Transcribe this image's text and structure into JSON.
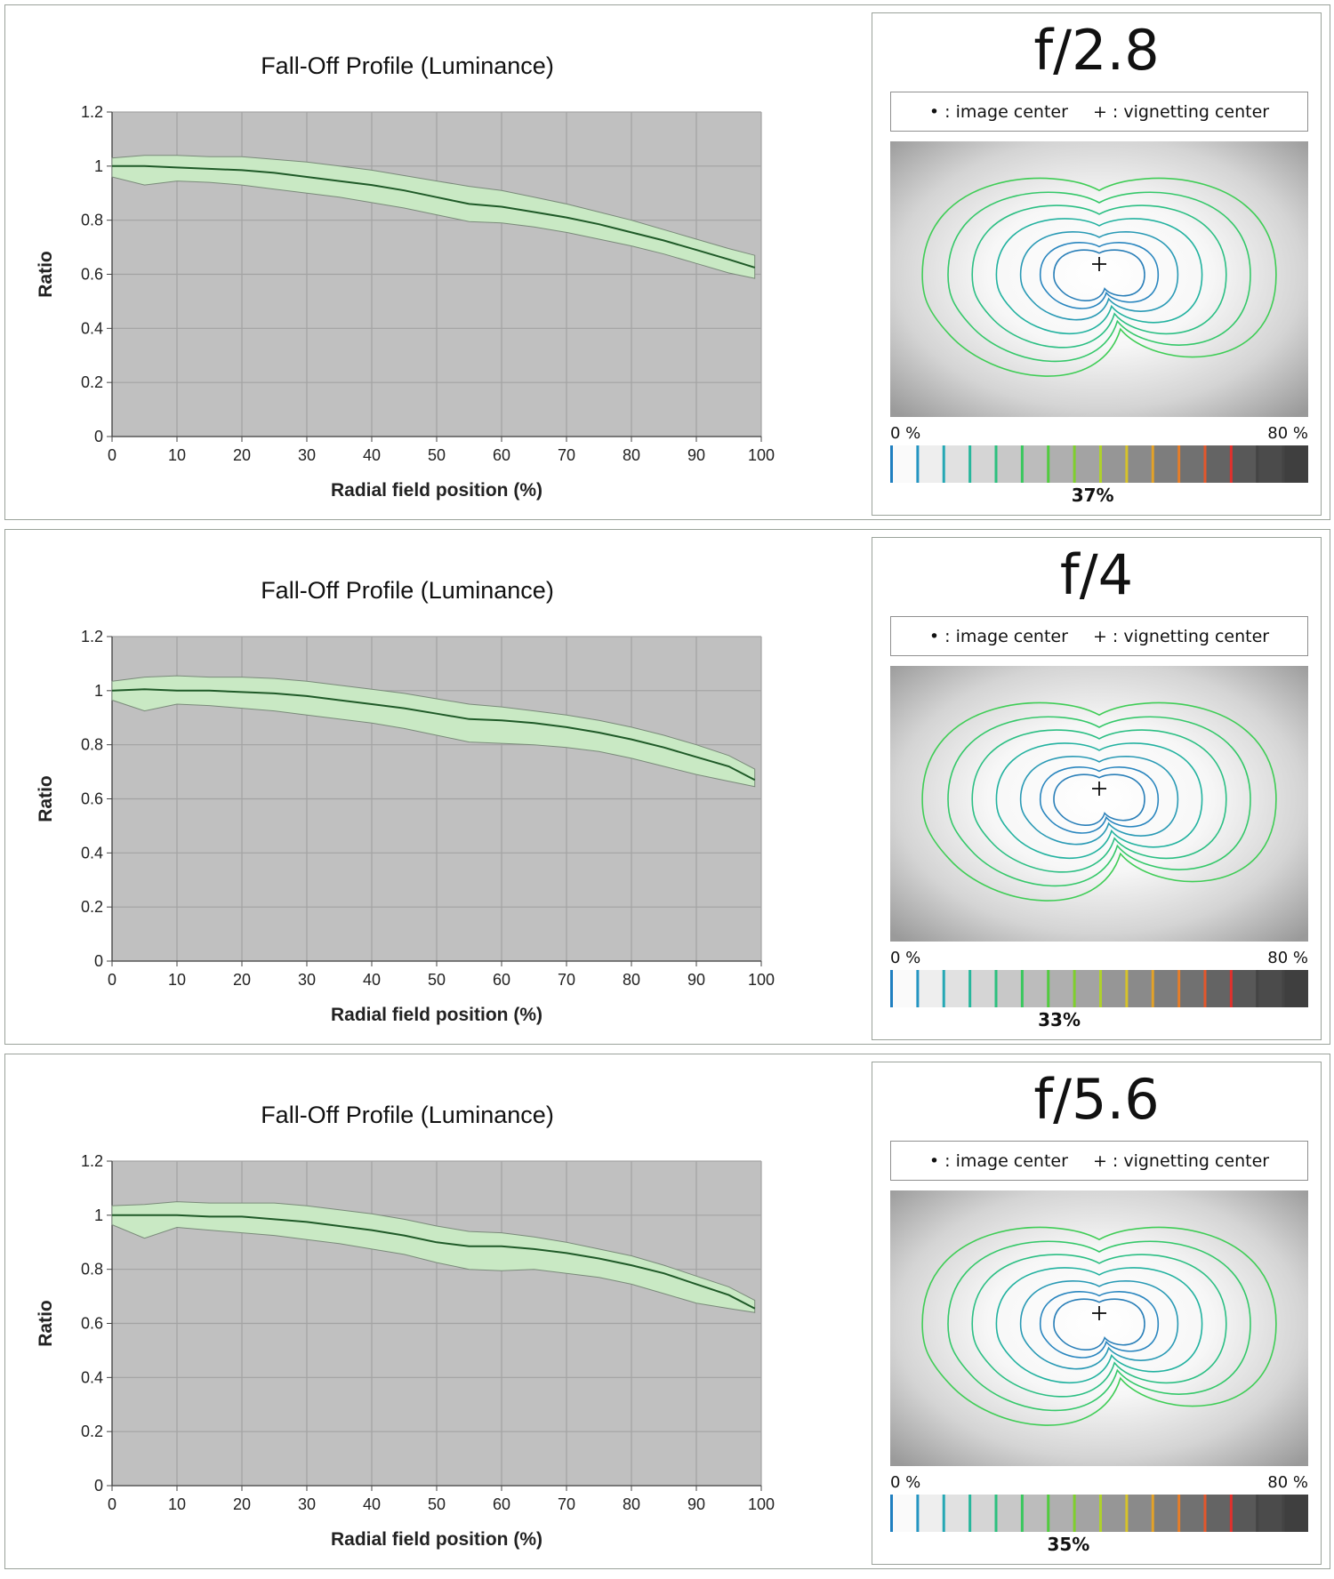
{
  "panels": [
    {
      "aperture": "f/2.8",
      "percent": "37%",
      "marker_x": 0.493
    },
    {
      "aperture": "f/4",
      "percent": "33%",
      "marker_x": 0.413
    },
    {
      "aperture": "f/5.6",
      "percent": "35%",
      "marker_x": 0.435
    }
  ],
  "vignette_legend": {
    "image_center": "• : image center",
    "vignetting_center": "+ : vignetting center"
  },
  "scale": {
    "min_label": "0 %",
    "max_label": "80 %"
  },
  "colors": {
    "plot_bg": "#c0c0c0",
    "band_fill": "#c9e9c4",
    "band_edge": "#7a8a7a",
    "line": "#1f5a28",
    "grid": "#a3a3a3"
  },
  "chart_data": [
    {
      "type": "line",
      "title": "Fall-Off Profile (Luminance)",
      "xlabel": "Radial field position (%)",
      "ylabel": "Ratio",
      "xlim": [
        0,
        100
      ],
      "ylim": [
        0,
        1.2
      ],
      "xticks": [
        "0",
        "10",
        "20",
        "30",
        "40",
        "50",
        "60",
        "70",
        "80",
        "90",
        "100"
      ],
      "yticks": [
        "0",
        "0.2",
        "0.4",
        "0.6",
        "0.8",
        "1",
        "1.2"
      ],
      "grid": true,
      "x": [
        0,
        5,
        10,
        15,
        20,
        25,
        30,
        35,
        40,
        45,
        50,
        55,
        60,
        65,
        70,
        75,
        80,
        85,
        90,
        95,
        99
      ],
      "mean": [
        1.0,
        1.0,
        0.995,
        0.99,
        0.985,
        0.975,
        0.96,
        0.945,
        0.93,
        0.91,
        0.885,
        0.86,
        0.85,
        0.83,
        0.81,
        0.785,
        0.755,
        0.725,
        0.69,
        0.655,
        0.625
      ],
      "upper": [
        1.03,
        1.04,
        1.04,
        1.035,
        1.035,
        1.025,
        1.015,
        1.0,
        0.985,
        0.965,
        0.945,
        0.925,
        0.91,
        0.885,
        0.86,
        0.83,
        0.8,
        0.765,
        0.73,
        0.695,
        0.67
      ],
      "lower": [
        0.96,
        0.93,
        0.945,
        0.94,
        0.93,
        0.915,
        0.9,
        0.885,
        0.865,
        0.845,
        0.82,
        0.795,
        0.79,
        0.775,
        0.755,
        0.73,
        0.705,
        0.675,
        0.64,
        0.605,
        0.585
      ]
    },
    {
      "type": "line",
      "title": "Fall-Off Profile (Luminance)",
      "xlabel": "Radial field position (%)",
      "ylabel": "Ratio",
      "xlim": [
        0,
        100
      ],
      "ylim": [
        0,
        1.2
      ],
      "xticks": [
        "0",
        "10",
        "20",
        "30",
        "40",
        "50",
        "60",
        "70",
        "80",
        "90",
        "100"
      ],
      "yticks": [
        "0",
        "0.2",
        "0.4",
        "0.6",
        "0.8",
        "1",
        "1.2"
      ],
      "grid": true,
      "x": [
        0,
        5,
        10,
        15,
        20,
        25,
        30,
        35,
        40,
        45,
        50,
        55,
        60,
        65,
        70,
        75,
        80,
        85,
        90,
        95,
        99
      ],
      "mean": [
        1.0,
        1.005,
        1.0,
        1.0,
        0.995,
        0.99,
        0.98,
        0.965,
        0.95,
        0.935,
        0.915,
        0.895,
        0.89,
        0.88,
        0.865,
        0.845,
        0.82,
        0.79,
        0.755,
        0.72,
        0.67
      ],
      "upper": [
        1.035,
        1.05,
        1.055,
        1.05,
        1.05,
        1.045,
        1.035,
        1.02,
        1.005,
        0.99,
        0.97,
        0.95,
        0.94,
        0.925,
        0.91,
        0.89,
        0.865,
        0.835,
        0.8,
        0.76,
        0.71
      ],
      "lower": [
        0.965,
        0.925,
        0.95,
        0.945,
        0.935,
        0.925,
        0.91,
        0.895,
        0.88,
        0.86,
        0.835,
        0.81,
        0.805,
        0.8,
        0.79,
        0.775,
        0.75,
        0.72,
        0.69,
        0.665,
        0.645
      ]
    },
    {
      "type": "line",
      "title": "Fall-Off Profile (Luminance)",
      "xlabel": "Radial field position (%)",
      "ylabel": "Ratio",
      "xlim": [
        0,
        100
      ],
      "ylim": [
        0,
        1.2
      ],
      "xticks": [
        "0",
        "10",
        "20",
        "30",
        "40",
        "50",
        "60",
        "70",
        "80",
        "90",
        "100"
      ],
      "yticks": [
        "0",
        "0.2",
        "0.4",
        "0.6",
        "0.8",
        "1",
        "1.2"
      ],
      "grid": true,
      "x": [
        0,
        5,
        10,
        15,
        20,
        25,
        30,
        35,
        40,
        45,
        50,
        55,
        60,
        65,
        70,
        75,
        80,
        85,
        90,
        95,
        99
      ],
      "mean": [
        1.0,
        1.0,
        1.0,
        0.995,
        0.995,
        0.985,
        0.975,
        0.96,
        0.945,
        0.925,
        0.9,
        0.885,
        0.885,
        0.875,
        0.86,
        0.84,
        0.815,
        0.785,
        0.745,
        0.705,
        0.655
      ],
      "upper": [
        1.035,
        1.04,
        1.05,
        1.045,
        1.045,
        1.045,
        1.035,
        1.02,
        1.005,
        0.985,
        0.96,
        0.94,
        0.935,
        0.92,
        0.9,
        0.875,
        0.85,
        0.815,
        0.775,
        0.735,
        0.685
      ],
      "lower": [
        0.965,
        0.915,
        0.955,
        0.945,
        0.935,
        0.925,
        0.91,
        0.895,
        0.875,
        0.855,
        0.825,
        0.8,
        0.795,
        0.8,
        0.785,
        0.77,
        0.745,
        0.71,
        0.675,
        0.655,
        0.64
      ]
    }
  ]
}
